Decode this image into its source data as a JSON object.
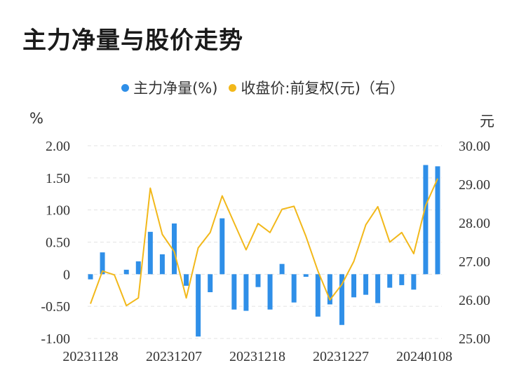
{
  "chart_data": {
    "type": "bar+line",
    "title": "主力净量与股价走势",
    "legend": [
      "主力净量(%)",
      "收盘价:前复权(元)（右）"
    ],
    "left_unit": "%",
    "right_unit": "元",
    "left_ticks": [
      "2.00",
      "1.50",
      "1.00",
      "0.50",
      "0",
      "-0.50",
      "-1.00"
    ],
    "right_ticks": [
      "30.00",
      "29.00",
      "28.00",
      "27.00",
      "26.00",
      "25.00"
    ],
    "x_ticks": [
      "20231128",
      "20231207",
      "20231218",
      "20231227",
      "20240108"
    ],
    "ylim_left": [
      -1.0,
      2.0
    ],
    "ylim_right": [
      25.0,
      30.0
    ],
    "colors": {
      "bar": "#2f8fe8",
      "line": "#f2b81a",
      "grid": "#e3e3e3"
    },
    "bars": [
      -0.08,
      0.34,
      0.0,
      0.07,
      0.2,
      0.66,
      0.31,
      0.79,
      -0.18,
      -0.97,
      -0.28,
      0.87,
      -0.55,
      -0.57,
      -0.2,
      -0.55,
      0.16,
      -0.44,
      -0.04,
      -0.66,
      -0.47,
      -0.79,
      -0.36,
      -0.32,
      -0.45,
      -0.21,
      -0.17,
      -0.24,
      1.7,
      1.68
    ],
    "close": [
      25.9,
      26.75,
      26.65,
      25.85,
      26.05,
      28.9,
      27.7,
      27.25,
      26.05,
      27.35,
      27.75,
      28.7,
      28.0,
      27.3,
      27.98,
      27.75,
      28.35,
      28.43,
      27.65,
      26.75,
      26.0,
      26.4,
      27.0,
      27.95,
      28.42,
      27.5,
      27.75,
      27.2,
      28.45,
      29.15
    ]
  }
}
